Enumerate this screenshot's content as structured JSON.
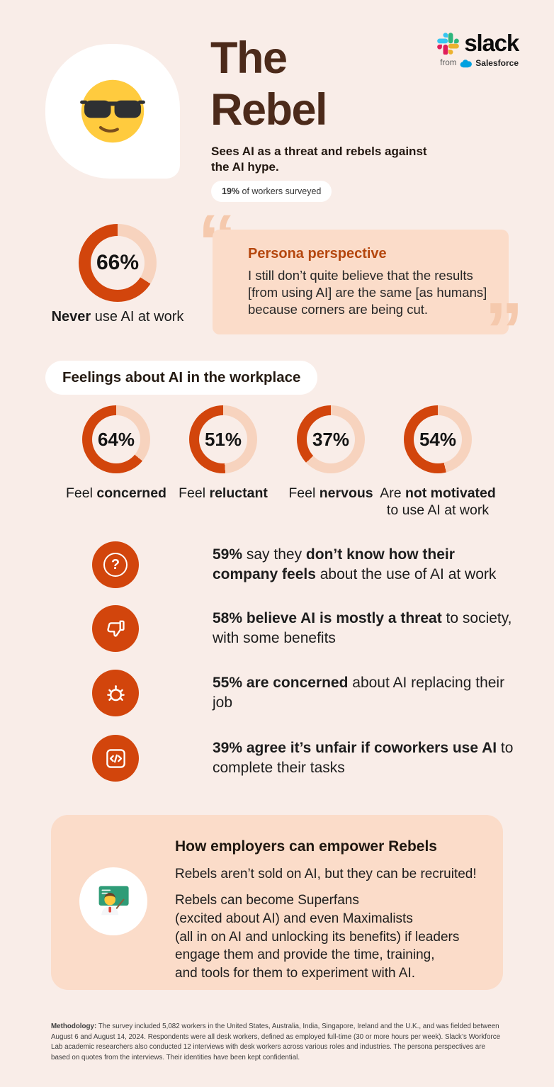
{
  "colors": {
    "background": "#F9EDE8",
    "peach_panel": "#FBDCC9",
    "donut_fill": "#D2450C",
    "donut_track": "#F7D3BE",
    "title_brown": "#4C2A1A",
    "quote_heading": "#B5470E",
    "quote_mark": "#F5C9AD",
    "icon_circle": "#D2450C",
    "slack_blue": "#36C5F0",
    "slack_green": "#2EB67D",
    "slack_yellow": "#ECB22E",
    "slack_pink": "#E01E5A",
    "salesforce_blue": "#00A1E0"
  },
  "brand": {
    "wordmark": "slack",
    "from_label": "from",
    "salesforce_label": "Salesforce"
  },
  "header": {
    "title_line1": "The",
    "title_line2": "Rebel",
    "description": "Sees AI as a threat and rebels against the AI hype.",
    "badge_segments": [
      {
        "t": "19%",
        "b": true
      },
      {
        "t": " of workers surveyed",
        "b": false
      }
    ]
  },
  "hero_stat": {
    "percent": "66%",
    "value": 66,
    "label_segments": [
      {
        "t": "Never",
        "b": true
      },
      {
        "t": " use AI at work",
        "b": false
      }
    ]
  },
  "quote": {
    "open_mark": "“",
    "close_mark": "”",
    "heading": "Persona perspective",
    "body": "I still don’t quite believe that the results [from using AI] are the same [as humans] because corners are being cut."
  },
  "feelings": {
    "section_title": "Feelings about AI in the workplace",
    "donuts": [
      {
        "percent": "64%",
        "value": 64,
        "label_segments": [
          {
            "t": "Feel ",
            "b": false
          },
          {
            "t": "concerned",
            "b": true
          }
        ]
      },
      {
        "percent": "51%",
        "value": 51,
        "label_segments": [
          {
            "t": "Feel ",
            "b": false
          },
          {
            "t": "reluctant",
            "b": true
          }
        ]
      },
      {
        "percent": "37%",
        "value": 37,
        "label_segments": [
          {
            "t": "Feel ",
            "b": false
          },
          {
            "t": "nervous",
            "b": true
          }
        ]
      },
      {
        "percent": "54%",
        "value": 54,
        "label_segments": [
          {
            "t": "Are ",
            "b": false
          },
          {
            "t": "not motivated",
            "b": true
          },
          {
            "t": " to use AI at work",
            "b": false
          }
        ]
      }
    ]
  },
  "stats": [
    {
      "icon": "question-circle-icon",
      "segments": [
        {
          "t": "59%",
          "b": true
        },
        {
          "t": " say they ",
          "b": false
        },
        {
          "t": "don’t know how their company feels",
          "b": true
        },
        {
          "t": " about the use of AI at work",
          "b": false
        }
      ]
    },
    {
      "icon": "thumbs-down-icon",
      "segments": [
        {
          "t": "58% believe AI is mostly a threat",
          "b": true
        },
        {
          "t": " to society, with some benefits",
          "b": false
        }
      ]
    },
    {
      "icon": "bug-icon",
      "segments": [
        {
          "t": "55% are concerned",
          "b": true
        },
        {
          "t": " about AI replacing their job",
          "b": false
        }
      ]
    },
    {
      "icon": "code-icon",
      "segments": [
        {
          "t": "39% agree it’s unfair if coworkers use AI",
          "b": true
        },
        {
          "t": " to complete their tasks",
          "b": false
        }
      ]
    }
  ],
  "icons": {
    "question_glyph": "?",
    "persona_emoji": "smiling-face-with-sunglasses",
    "empower_emoji": "teacher"
  },
  "empower": {
    "heading": "How employers can empower Rebels",
    "line1": "Rebels aren’t sold on AI, but they can be recruited!",
    "body": "Rebels can become Superfans\n(excited about AI) and even Maximalists\n(all in on AI and unlocking its benefits) if leaders\nengage them and provide the time, training,\nand tools for them to experiment with AI."
  },
  "footer_segments": [
    {
      "t": "Methodology:",
      "b": true
    },
    {
      "t": " The survey included 5,082 workers in the United States, Australia, India, Singapore, Ireland and the U.K., and was fielded between August 6 and August 14, 2024. Respondents were all desk workers, defined as employed full-time (30 or more hours per week). Slack’s Workforce Lab academic researchers also conducted 12 interviews with desk workers across various roles and industries. The persona perspectives are based on quotes from the interviews. Their identities have been kept confidential.",
      "b": false
    }
  ],
  "chart_data": [
    {
      "type": "pie",
      "title": "Never use AI at work",
      "categories": [
        "Never use AI at work",
        "Other"
      ],
      "values": [
        66,
        34
      ],
      "unit": "%"
    },
    {
      "type": "pie",
      "title": "Feel concerned",
      "categories": [
        "Feel concerned",
        "Other"
      ],
      "values": [
        64,
        36
      ],
      "unit": "%"
    },
    {
      "type": "pie",
      "title": "Feel reluctant",
      "categories": [
        "Feel reluctant",
        "Other"
      ],
      "values": [
        51,
        49
      ],
      "unit": "%"
    },
    {
      "type": "pie",
      "title": "Feel nervous",
      "categories": [
        "Feel nervous",
        "Other"
      ],
      "values": [
        37,
        63
      ],
      "unit": "%"
    },
    {
      "type": "pie",
      "title": "Are not motivated to use AI at work",
      "categories": [
        "Not motivated",
        "Other"
      ],
      "values": [
        54,
        46
      ],
      "unit": "%"
    }
  ]
}
